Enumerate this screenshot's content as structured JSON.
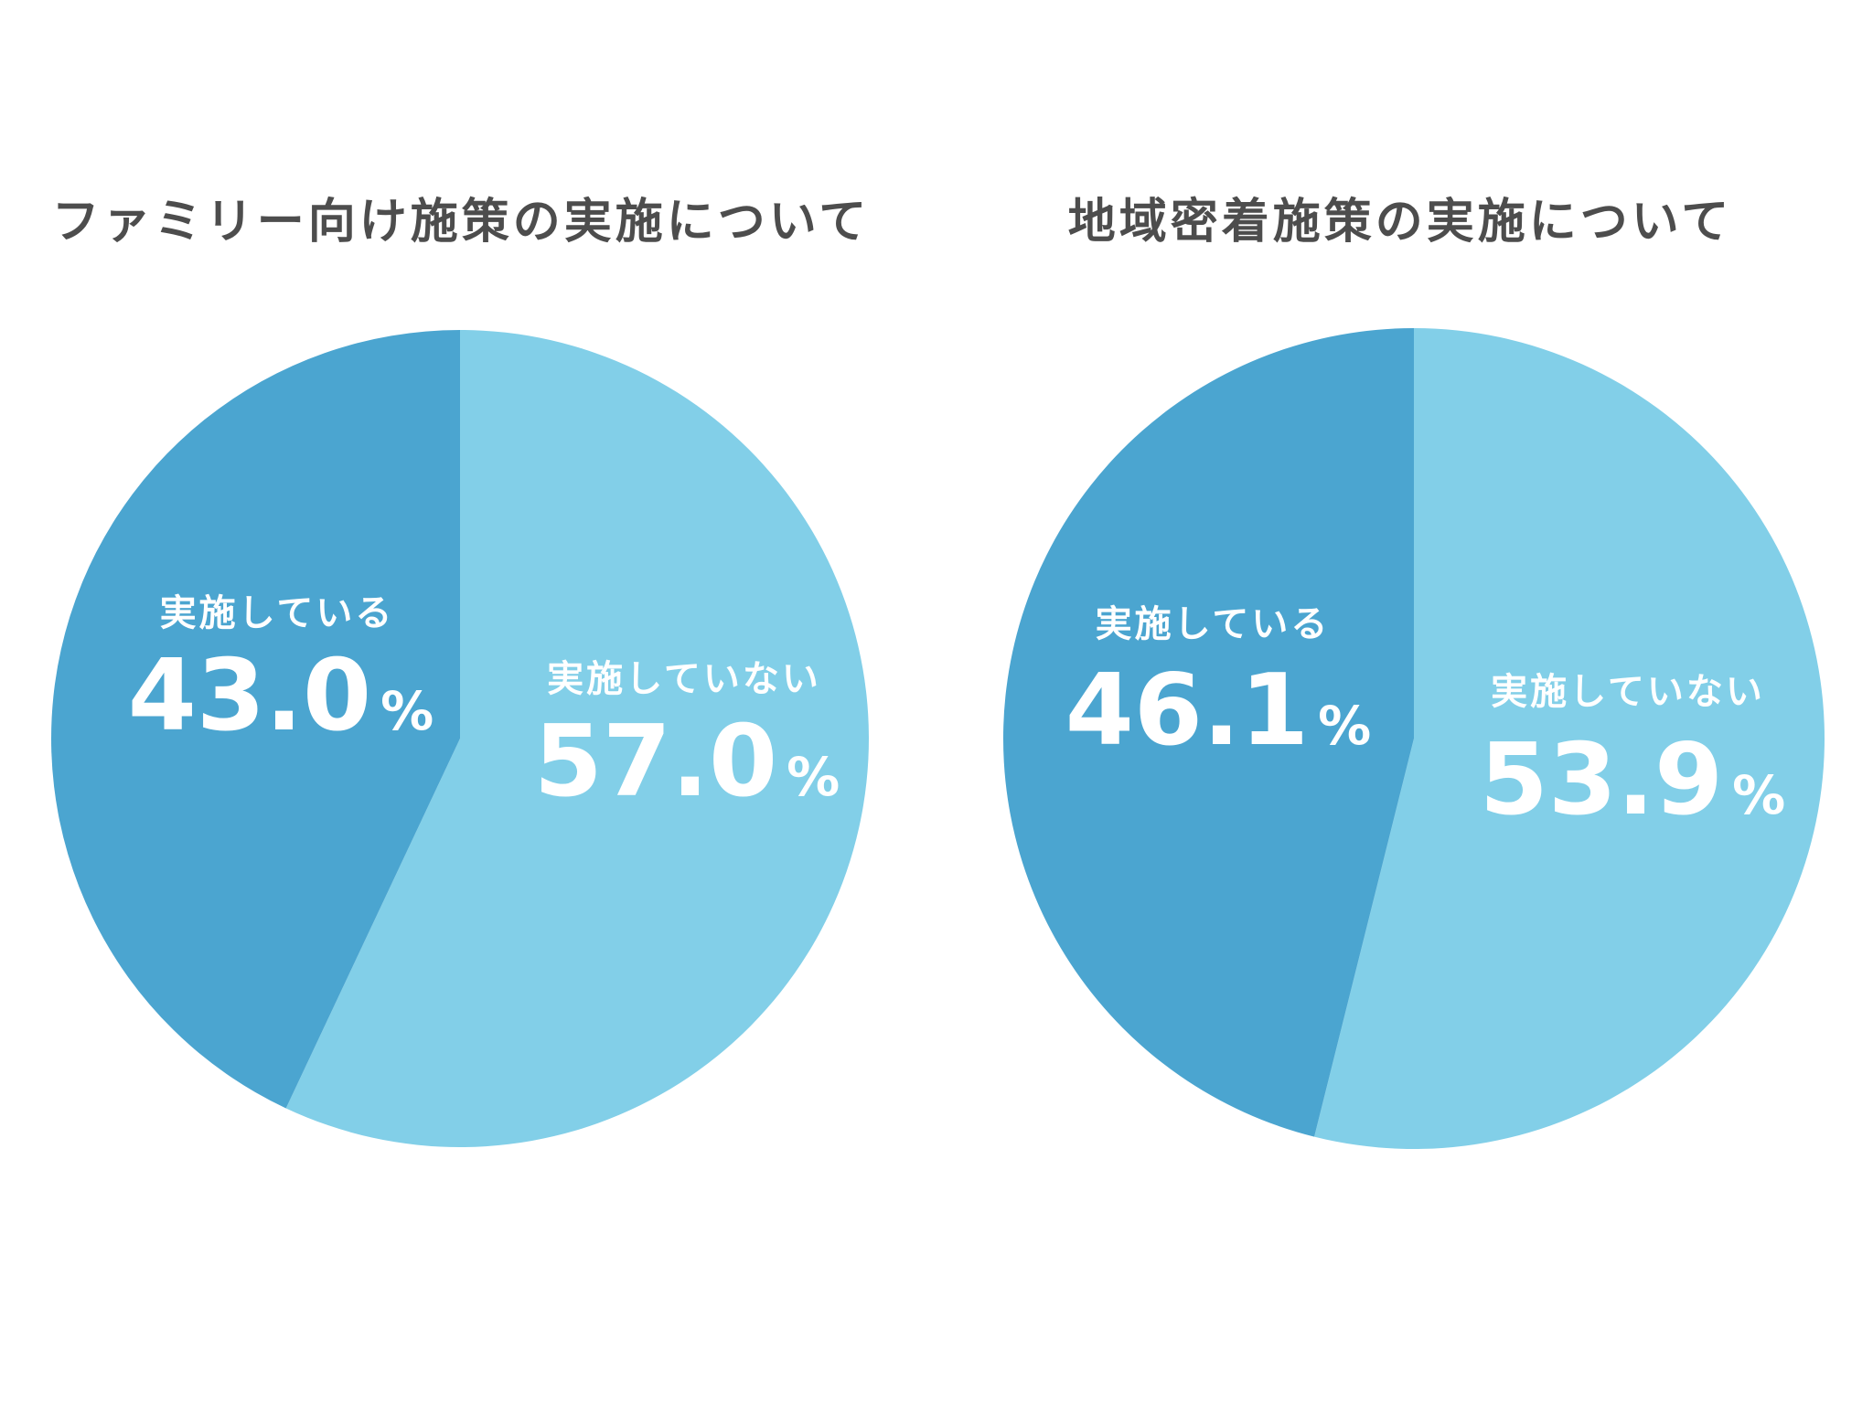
{
  "colors": {
    "implemented": "#4BA5D0",
    "not_implemented": "#82CFE8",
    "title": "#4d4d4d"
  },
  "chart_data": [
    {
      "type": "pie",
      "title": "ファミリー向け施策の実施について",
      "slices": [
        {
          "label": "実施していない",
          "value": 57.0,
          "display": "57.0",
          "unit": "%"
        },
        {
          "label": "実施している",
          "value": 43.0,
          "display": "43.0",
          "unit": "%"
        }
      ]
    },
    {
      "type": "pie",
      "title": "地域密着施策の実施について",
      "slices": [
        {
          "label": "実施していない",
          "value": 53.9,
          "display": "53.9",
          "unit": "%"
        },
        {
          "label": "実施している",
          "value": 46.1,
          "display": "46.1",
          "unit": "%"
        }
      ]
    }
  ]
}
